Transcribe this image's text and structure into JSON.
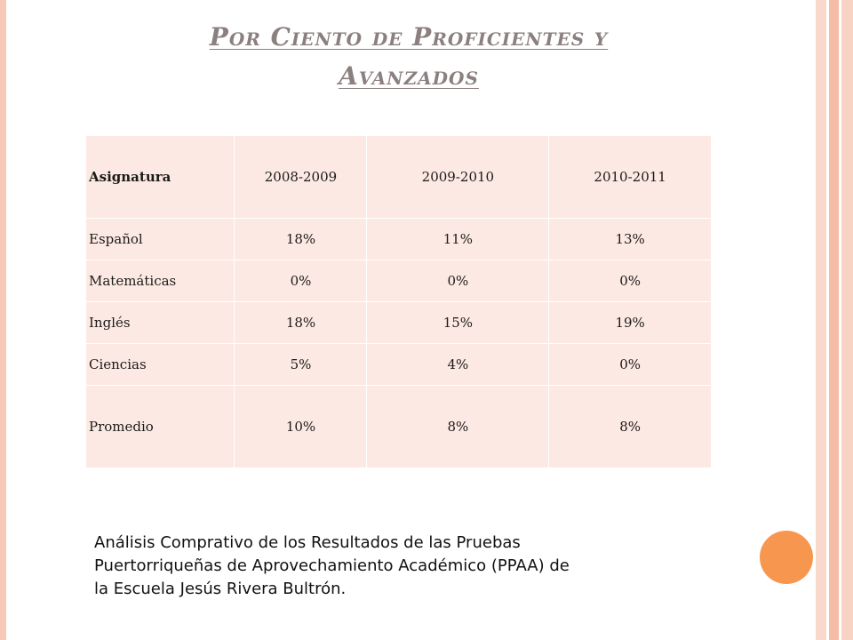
{
  "title": {
    "line1": "Por Ciento de Proficientes y",
    "line2": "Avanzados"
  },
  "table": {
    "headers": [
      "Asignatura",
      "2008-2009",
      "2009-2010",
      "2010-2011"
    ],
    "rows": [
      [
        "Español",
        "18%",
        "11%",
        "13%"
      ],
      [
        "Matemáticas",
        "0%",
        "0%",
        "0%"
      ],
      [
        "Inglés",
        "18%",
        "15%",
        "19%"
      ],
      [
        "Ciencias",
        "5%",
        "4%",
        "0%"
      ],
      [
        "Promedio",
        "10%",
        "8%",
        "8%"
      ]
    ]
  },
  "caption": {
    "line1": "Análisis Comprativo de los Resultados de las Pruebas",
    "line2": "Puertorriqueñas de Aprovechamiento Académico (PPAA) de",
    "line3": "la Escuela Jesús Rivera Bultrón."
  },
  "colors": {
    "cell_background": "#fde9e3",
    "title": "#8c7f7f",
    "accent_circle": "#f7964e",
    "frame": "#f5bca6"
  }
}
